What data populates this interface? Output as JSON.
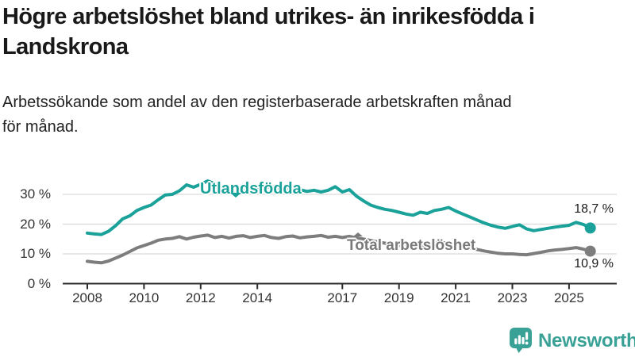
{
  "title": {
    "lines": [
      "Högre arbetslöshet bland utrikes- än inrikesfödda i",
      "Landskrona"
    ]
  },
  "subtitle": {
    "lines": [
      "Arbetssökande som andel av den registerbaserade arbetskraften månad",
      "för månad."
    ]
  },
  "logo": {
    "text": "Newsworthy",
    "icon": "newsworthy-speech-bubble-bar-chart-icon",
    "color": "#3aa197"
  },
  "colors": {
    "foreign_series": "#1aa29a",
    "total_series": "#7d7d7d",
    "grid": "#d9d9d9",
    "axis": "#2b2b2b",
    "title_text": "#191919",
    "value_label": "#1a1a1a"
  },
  "chart_data": {
    "type": "line",
    "title": "Högre arbetslöshet bland utrikes- än inrikesfödda i Landskrona",
    "subtitle": "Arbetssökande som andel av den registerbaserade arbetskraften månad för månad.",
    "unit": "%",
    "grid": "horizontal",
    "legend_position": "inline-labels",
    "x_ticks": [
      2008,
      2010,
      2012,
      2014,
      2017,
      2019,
      2021,
      2023,
      2025
    ],
    "x_tick_labels": [
      "2008",
      "2010",
      "2012",
      "2014",
      "2017",
      "2019",
      "2021",
      "2023",
      "2025"
    ],
    "y_ticks": [
      0,
      10,
      20,
      30
    ],
    "y_tick_labels": [
      "0 %",
      "10 %",
      "20 %",
      "30 %"
    ],
    "ylim": [
      0,
      38
    ],
    "xlim_years": [
      2007.1,
      2026.7
    ],
    "x": [
      2008,
      2008.25,
      2008.5,
      2008.75,
      2009,
      2009.25,
      2009.5,
      2009.75,
      2010,
      2010.25,
      2010.5,
      2010.75,
      2011,
      2011.25,
      2011.5,
      2011.75,
      2012,
      2012.25,
      2012.5,
      2012.75,
      2013,
      2013.25,
      2013.5,
      2013.75,
      2014,
      2014.25,
      2014.5,
      2014.75,
      2015,
      2015.25,
      2015.5,
      2015.75,
      2016,
      2016.25,
      2016.5,
      2016.75,
      2017,
      2017.25,
      2017.5,
      2017.75,
      2018,
      2018.25,
      2018.5,
      2018.75,
      2019,
      2019.25,
      2019.5,
      2019.75,
      2020,
      2020.25,
      2020.5,
      2020.75,
      2021,
      2021.25,
      2021.5,
      2021.75,
      2022,
      2022.25,
      2022.5,
      2022.75,
      2023,
      2023.25,
      2023.5,
      2023.75,
      2024,
      2024.25,
      2024.5,
      2024.75,
      2025,
      2025.25,
      2025.5,
      2025.75
    ],
    "series": [
      {
        "id": "utlandsfodda",
        "name": "Utlandsfödda",
        "color": "#1aa29a",
        "end_label": "18,7 %",
        "last_value": 18.7,
        "values": [
          17.0,
          16.7,
          16.5,
          17.6,
          19.5,
          21.8,
          22.8,
          24.6,
          25.6,
          26.4,
          28.2,
          29.8,
          30.0,
          31.2,
          33.2,
          32.4,
          33.4,
          34.5,
          33.6,
          32.4,
          31.2,
          30.4,
          31.4,
          32.0,
          31.6,
          32.2,
          32.6,
          32.0,
          31.4,
          32.0,
          31.6,
          31.0,
          31.4,
          30.8,
          31.4,
          32.6,
          30.8,
          31.6,
          29.4,
          27.8,
          26.4,
          25.6,
          25.0,
          24.6,
          24.0,
          23.4,
          23.0,
          24.0,
          23.6,
          24.6,
          25.0,
          25.6,
          24.4,
          23.4,
          22.4,
          21.4,
          20.4,
          19.6,
          19.0,
          18.6,
          19.2,
          19.8,
          18.4,
          17.8,
          18.2,
          18.6,
          19.0,
          19.3,
          19.6,
          20.6,
          19.9,
          18.7
        ]
      },
      {
        "id": "total",
        "name": "Total arbetslöshet",
        "color": "#7d7d7d",
        "end_label": "10,9 %",
        "last_value": 10.9,
        "values": [
          7.5,
          7.2,
          7.0,
          7.6,
          8.6,
          9.6,
          10.8,
          12.0,
          12.8,
          13.6,
          14.6,
          15.0,
          15.2,
          15.8,
          15.0,
          15.6,
          16.0,
          16.3,
          15.5,
          15.9,
          15.3,
          15.9,
          16.1,
          15.5,
          15.9,
          16.2,
          15.5,
          15.2,
          15.8,
          16.0,
          15.4,
          15.7,
          15.9,
          16.2,
          15.6,
          15.9,
          15.5,
          15.9,
          15.4,
          15.0,
          14.5,
          14.0,
          13.6,
          13.1,
          12.8,
          12.5,
          12.3,
          12.6,
          12.9,
          13.6,
          13.8,
          13.5,
          13.0,
          12.5,
          12.0,
          11.5,
          11.0,
          10.6,
          10.2,
          10.0,
          10.0,
          9.8,
          9.7,
          10.1,
          10.5,
          11.0,
          11.3,
          11.5,
          11.8,
          12.1,
          11.6,
          10.9
        ]
      }
    ]
  }
}
